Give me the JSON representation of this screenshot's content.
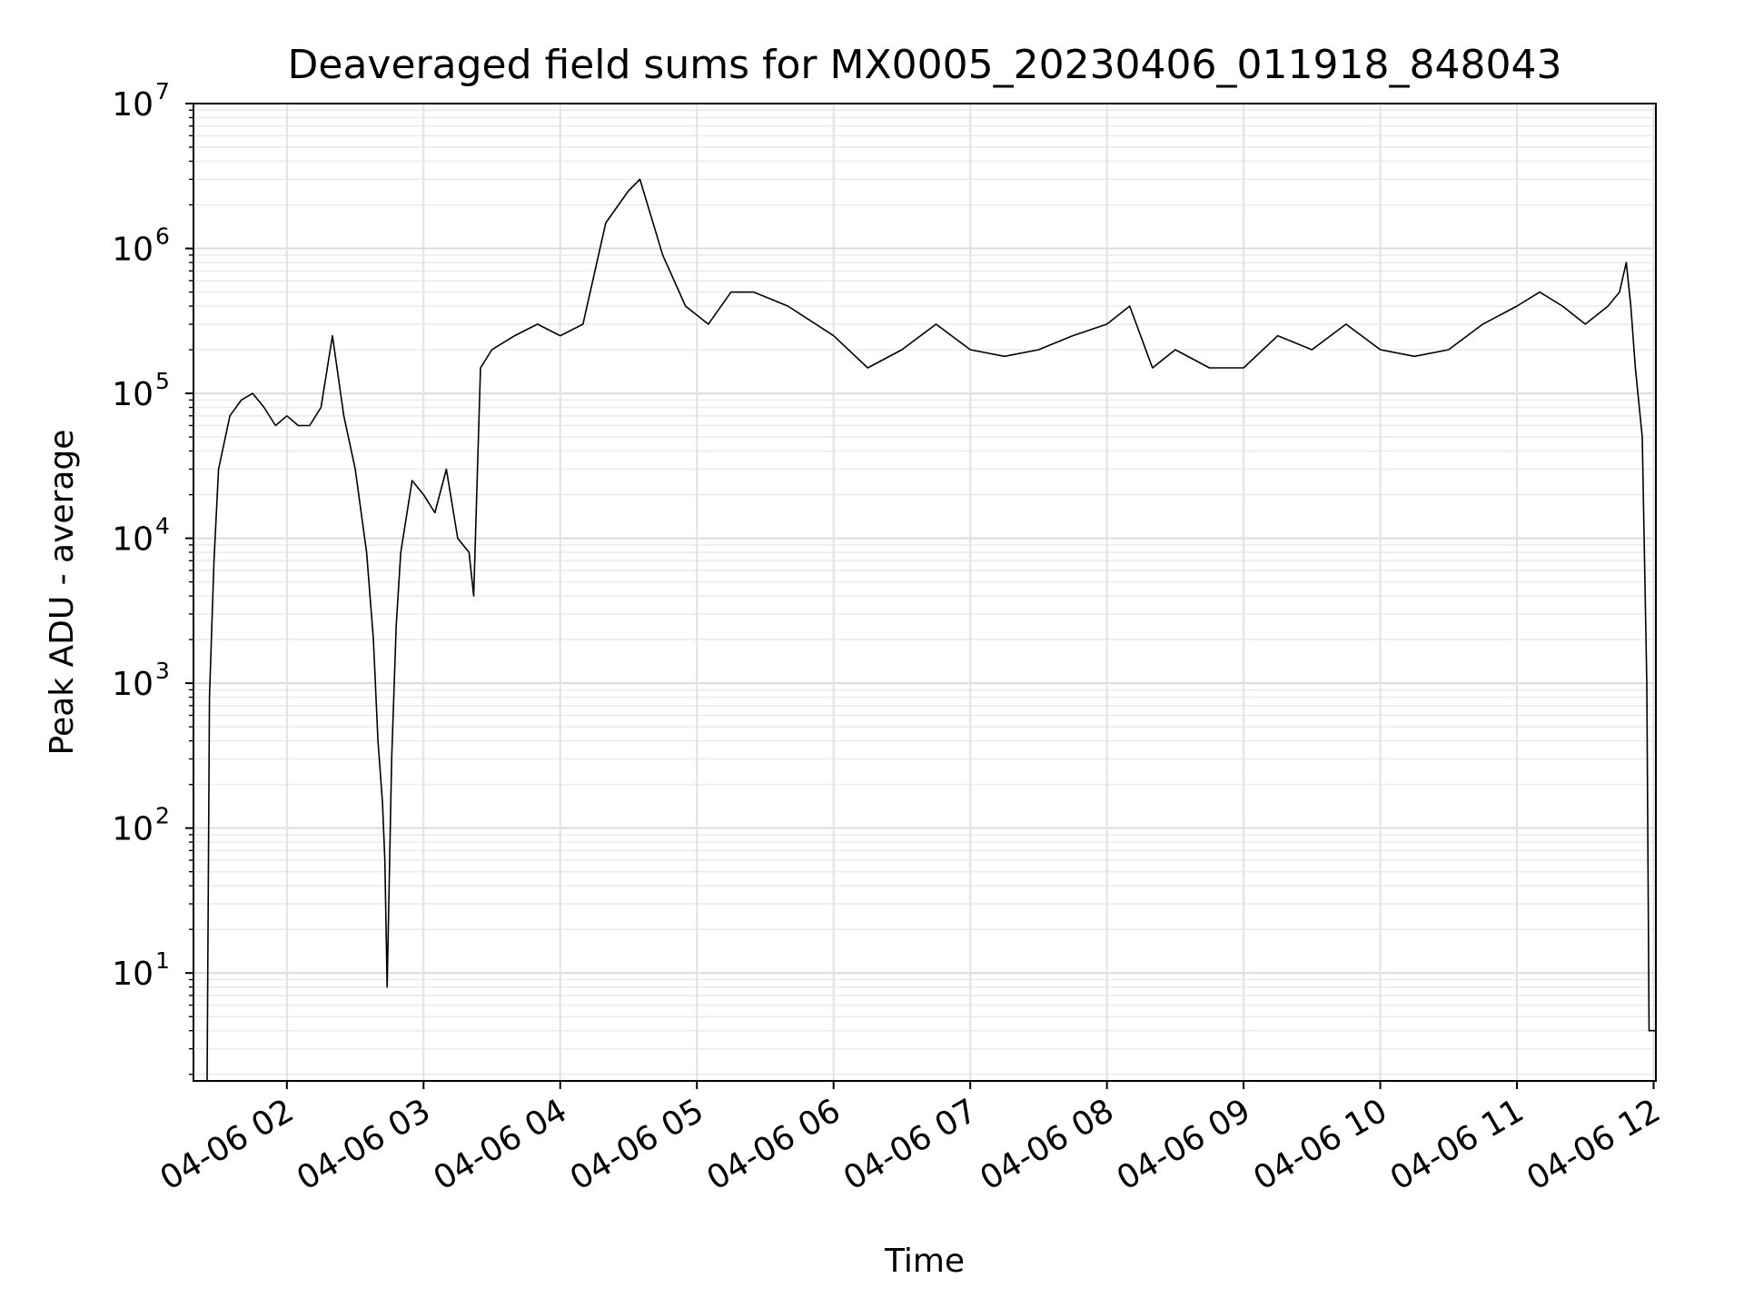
{
  "chart_data": {
    "type": "line",
    "title": "Deaveraged field sums for MX0005_20230406_011918_848043",
    "xlabel": "Time",
    "ylabel": "Peak ADU - average",
    "yscale": "log",
    "ylim": [
      1.8,
      10000000
    ],
    "xlim": [
      "04-06 01:19",
      "04-06 12:01"
    ],
    "grid": true,
    "line_color": "#000000",
    "x_ticks": [
      "04-06 02",
      "04-06 03",
      "04-06 04",
      "04-06 05",
      "04-06 06",
      "04-06 07",
      "04-06 08",
      "04-06 09",
      "04-06 10",
      "04-06 11",
      "04-06 12"
    ],
    "y_ticks": [
      {
        "base": "10",
        "exp": "1",
        "value": 10
      },
      {
        "base": "10",
        "exp": "2",
        "value": 100
      },
      {
        "base": "10",
        "exp": "3",
        "value": 1000
      },
      {
        "base": "10",
        "exp": "4",
        "value": 10000
      },
      {
        "base": "10",
        "exp": "5",
        "value": 100000
      },
      {
        "base": "10",
        "exp": "6",
        "value": 1000000
      },
      {
        "base": "10",
        "exp": "7",
        "value": 10000000
      }
    ],
    "series": [
      {
        "x": [
          "04-06 01:25",
          "04-06 01:26",
          "04-06 01:28",
          "04-06 01:30",
          "04-06 01:35",
          "04-06 01:40",
          "04-06 01:45",
          "04-06 01:50",
          "04-06 01:55",
          "04-06 02:00",
          "04-06 02:05",
          "04-06 02:10",
          "04-06 02:15",
          "04-06 02:20",
          "04-06 02:25",
          "04-06 02:30",
          "04-06 02:35",
          "04-06 02:38",
          "04-06 02:40",
          "04-06 02:42",
          "04-06 02:43",
          "04-06 02:44",
          "04-06 02:46",
          "04-06 02:48",
          "04-06 02:50",
          "04-06 02:55",
          "04-06 03:00",
          "04-06 03:05",
          "04-06 03:10",
          "04-06 03:15",
          "04-06 03:20",
          "04-06 03:22",
          "04-06 03:25",
          "04-06 03:30",
          "04-06 03:40",
          "04-06 03:50",
          "04-06 04:00",
          "04-06 04:10",
          "04-06 04:20",
          "04-06 04:30",
          "04-06 04:35",
          "04-06 04:45",
          "04-06 04:55",
          "04-06 05:05",
          "04-06 05:15",
          "04-06 05:25",
          "04-06 05:40",
          "04-06 06:00",
          "04-06 06:15",
          "04-06 06:30",
          "04-06 06:45",
          "04-06 07:00",
          "04-06 07:15",
          "04-06 07:30",
          "04-06 07:45",
          "04-06 08:00",
          "04-06 08:10",
          "04-06 08:20",
          "04-06 08:30",
          "04-06 08:45",
          "04-06 09:00",
          "04-06 09:15",
          "04-06 09:30",
          "04-06 09:45",
          "04-06 10:00",
          "04-06 10:15",
          "04-06 10:30",
          "04-06 10:45",
          "04-06 11:00",
          "04-06 11:10",
          "04-06 11:20",
          "04-06 11:30",
          "04-06 11:40",
          "04-06 11:45",
          "04-06 11:48",
          "04-06 11:50",
          "04-06 11:52",
          "04-06 11:55",
          "04-06 11:57",
          "04-06 11:58",
          "04-06 12:00",
          "04-06 12:01"
        ],
        "y": [
          1.8,
          800,
          7000,
          30000,
          70000,
          90000,
          100000,
          80000,
          60000,
          70000,
          60000,
          60000,
          80000,
          250000,
          70000,
          30000,
          8000,
          2000,
          400,
          150,
          60,
          8,
          300,
          2500,
          8000,
          25000,
          20000,
          15000,
          30000,
          10000,
          8000,
          4000,
          150000,
          200000,
          250000,
          300000,
          250000,
          300000,
          1500000,
          2500000,
          3000000,
          900000,
          400000,
          300000,
          500000,
          500000,
          400000,
          250000,
          150000,
          200000,
          300000,
          200000,
          180000,
          200000,
          250000,
          300000,
          400000,
          150000,
          200000,
          150000,
          150000,
          250000,
          200000,
          300000,
          200000,
          180000,
          200000,
          300000,
          400000,
          500000,
          400000,
          300000,
          400000,
          500000,
          800000,
          400000,
          150000,
          50000,
          1000,
          4,
          4,
          4
        ]
      }
    ]
  }
}
